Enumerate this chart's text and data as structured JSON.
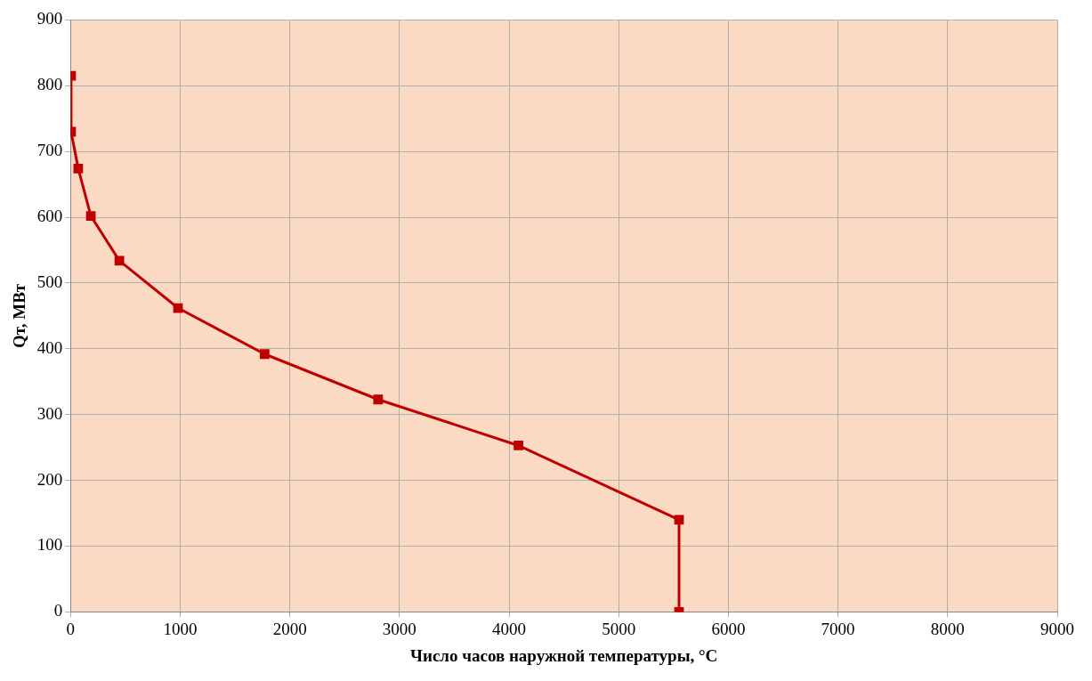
{
  "chart_data": {
    "type": "line",
    "xlabel": "Число часов наружной температуры, °C",
    "ylabel": "Qт, МВт",
    "series": [
      {
        "color": "#c00000",
        "x": [
          5,
          5,
          70,
          185,
          445,
          980,
          1770,
          2805,
          4085,
          5550,
          5550
        ],
        "values": [
          815,
          730,
          674,
          602,
          534,
          462,
          392,
          323,
          253,
          140,
          0
        ]
      }
    ],
    "xlim": [
      0,
      9000
    ],
    "xticks": [
      0,
      1000,
      2000,
      3000,
      4000,
      5000,
      6000,
      7000,
      8000,
      9000
    ],
    "ylim": [
      0,
      900
    ],
    "yticks": [
      0,
      100,
      200,
      300,
      400,
      500,
      600,
      700,
      800,
      900
    ],
    "grid": true,
    "legend": false,
    "marker": "square",
    "line_style": "solid"
  }
}
